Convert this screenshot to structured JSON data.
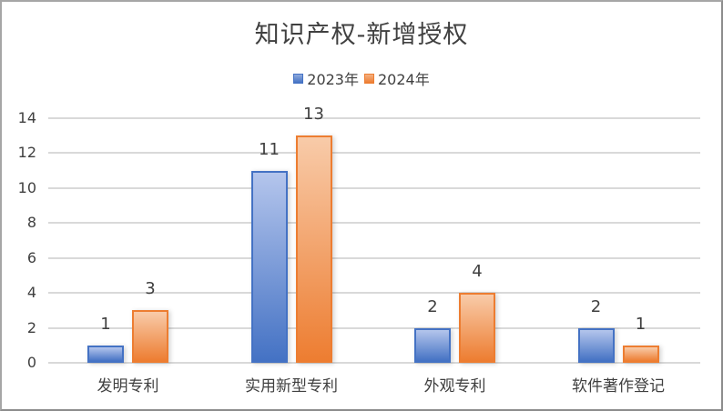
{
  "chart_data": {
    "type": "bar",
    "title": "知识产权-新增授权",
    "categories": [
      "发明专利",
      "实用新型专利",
      "外观专利",
      "软件著作登记"
    ],
    "series": [
      {
        "name": "2023年",
        "values": [
          1,
          11,
          2,
          2
        ],
        "color": "#4472c4"
      },
      {
        "name": "2024年",
        "values": [
          3,
          13,
          4,
          1
        ],
        "color": "#ed7d31"
      }
    ],
    "xlabel": "",
    "ylabel": "",
    "ylim": [
      0,
      14
    ],
    "yticks": [
      "0",
      "2",
      "4",
      "6",
      "8",
      "10",
      "12",
      "14"
    ],
    "grid": true,
    "legend_position": "top",
    "data_labels": true
  }
}
